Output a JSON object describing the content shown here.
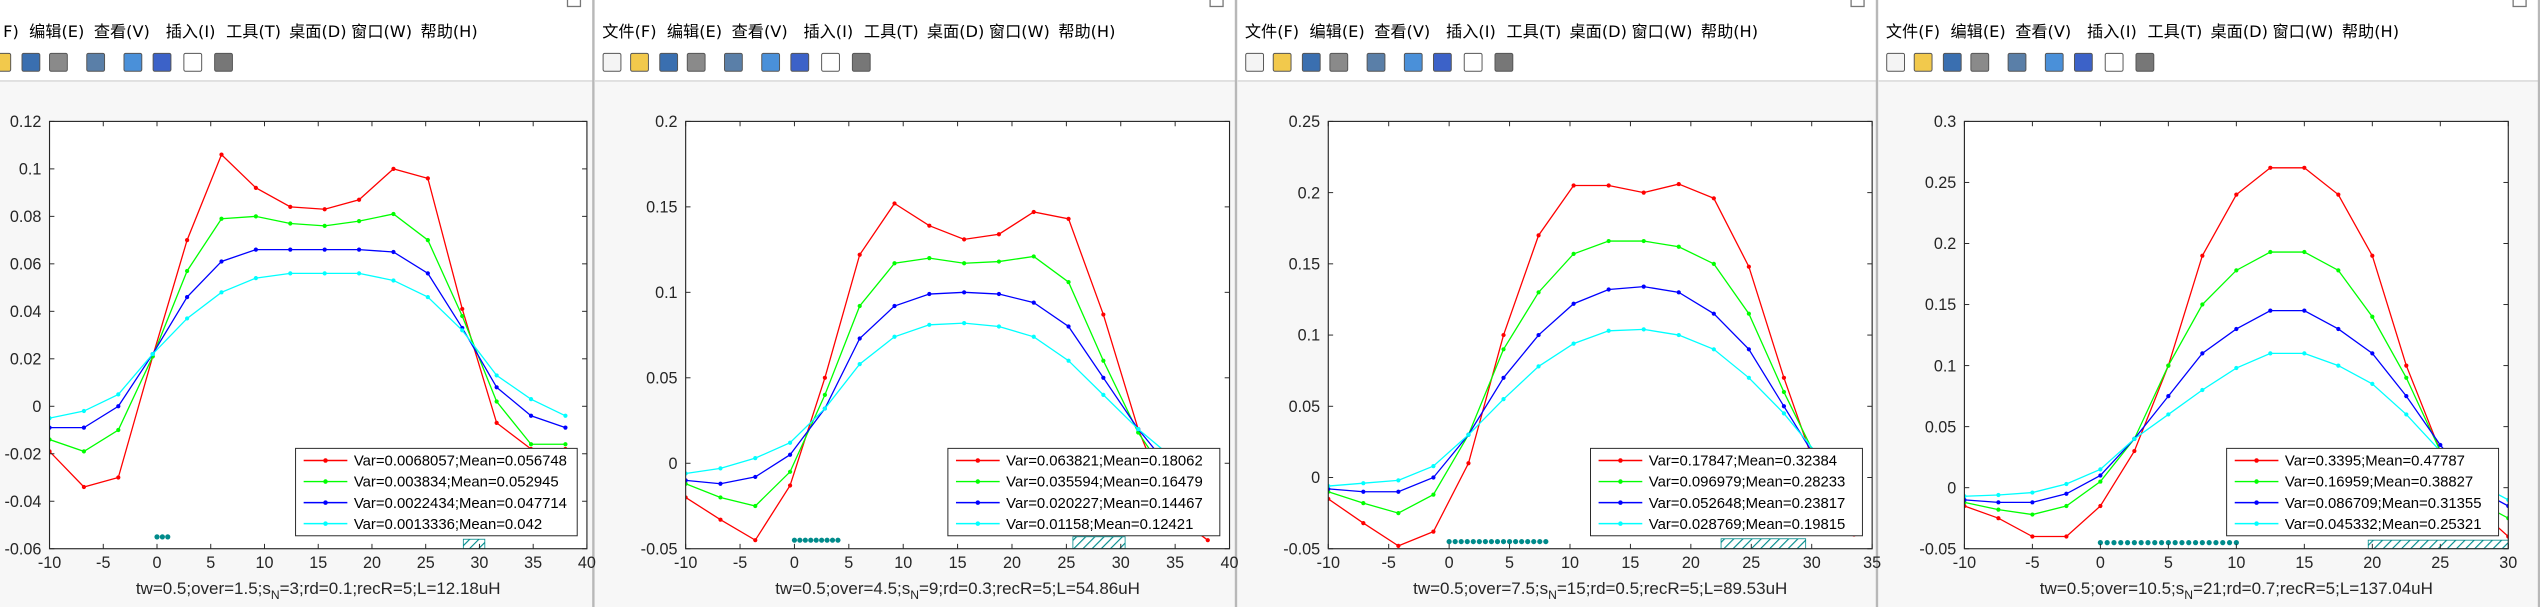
{
  "windows": [
    {
      "menu": [
        "F)",
        "编辑(E)",
        "查看(V)",
        "插入(I)",
        "工具(T)",
        "桌面(D)",
        "窗口(W)",
        "帮助(H)"
      ]
    },
    {
      "menu": [
        "文件(F)",
        "编辑(E)",
        "查看(V)",
        "插入(I)",
        "工具(T)",
        "桌面(D)",
        "窗口(W)",
        "帮助(H)"
      ]
    },
    {
      "menu": [
        "文件(F)",
        "编辑(E)",
        "查看(V)",
        "插入(I)",
        "工具(T)",
        "桌面(D)",
        "窗口(W)",
        "帮助(H)"
      ]
    },
    {
      "menu": [
        "文件(F)",
        "编辑(E)",
        "查看(V)",
        "插入(I)",
        "工具(T)",
        "桌面(D)",
        "窗口(W)",
        "帮助(H)"
      ]
    }
  ],
  "chart_data": [
    {
      "type": "line",
      "xlabel": {
        "text": "tw=0.5;over=1.5;s",
        "sub": "N",
        "tail": "=3;rd=0.1;recR=5;L=12.18uH"
      },
      "xlim": [
        -10,
        40
      ],
      "xticks": [
        -10,
        -5,
        0,
        5,
        10,
        15,
        20,
        25,
        30,
        35,
        40
      ],
      "ylim": [
        -0.06,
        0.12
      ],
      "yticks": [
        -0.06,
        -0.04,
        -0.02,
        0,
        0.02,
        0.04,
        0.06,
        0.08,
        0.1,
        0.12
      ],
      "x": [
        -10,
        -6.8,
        -3.6,
        -0.4,
        2.8,
        6,
        9.2,
        12.4,
        15.6,
        18.8,
        22,
        25.2,
        28.4,
        31.6,
        34.8,
        38
      ],
      "series": [
        {
          "name": "Var=0.0068057;Mean=0.056748",
          "color": "#ff0000",
          "values": [
            -0.019,
            -0.034,
            -0.03,
            0.021,
            0.07,
            0.106,
            0.092,
            0.084,
            0.083,
            0.087,
            0.1,
            0.096,
            0.041,
            -0.007,
            -0.018,
            -0.018
          ]
        },
        {
          "name": "Var=0.003834;Mean=0.052945",
          "color": "#00ff00",
          "values": [
            -0.014,
            -0.019,
            -0.01,
            0.021,
            0.057,
            0.079,
            0.08,
            0.077,
            0.076,
            0.078,
            0.081,
            0.07,
            0.038,
            0.002,
            -0.016,
            -0.016
          ]
        },
        {
          "name": "Var=0.0022434;Mean=0.047714",
          "color": "#0000ff",
          "values": [
            -0.009,
            -0.009,
            0.0,
            0.022,
            0.046,
            0.061,
            0.066,
            0.066,
            0.066,
            0.066,
            0.065,
            0.056,
            0.033,
            0.008,
            -0.004,
            -0.009
          ]
        },
        {
          "name": "Var=0.0013336;Mean=0.042",
          "color": "#00ffff",
          "values": [
            -0.005,
            -0.002,
            0.005,
            0.022,
            0.037,
            0.048,
            0.054,
            0.056,
            0.056,
            0.056,
            0.053,
            0.046,
            0.032,
            0.013,
            0.003,
            -0.004
          ]
        }
      ],
      "markers": {
        "x": [
          0,
          0.5,
          1
        ],
        "y": -0.055,
        "color": "#008b8b"
      },
      "hatch": {
        "x": [
          28.5,
          30.5
        ],
        "y": [
          -0.06,
          -0.056
        ],
        "color": "#008b8b"
      }
    },
    {
      "type": "line",
      "xlabel": {
        "text": "tw=0.5;over=4.5;s",
        "sub": "N",
        "tail": "=9;rd=0.3;recR=5;L=54.86uH"
      },
      "xlim": [
        -10,
        40
      ],
      "xticks": [
        -10,
        -5,
        0,
        5,
        10,
        15,
        20,
        25,
        30,
        35,
        40
      ],
      "ylim": [
        -0.05,
        0.2
      ],
      "yticks": [
        -0.05,
        0,
        0.05,
        0.1,
        0.15,
        0.2
      ],
      "x": [
        -10,
        -6.8,
        -3.6,
        -0.4,
        2.8,
        6,
        9.2,
        12.4,
        15.6,
        18.8,
        22,
        25.2,
        28.4,
        31.6,
        34.8,
        38
      ],
      "series": [
        {
          "name": "Var=0.063821;Mean=0.18062",
          "color": "#ff0000",
          "values": [
            -0.02,
            -0.033,
            -0.045,
            -0.013,
            0.05,
            0.122,
            0.152,
            0.139,
            0.131,
            0.134,
            0.147,
            0.143,
            0.087,
            0.02,
            -0.03,
            -0.045
          ]
        },
        {
          "name": "Var=0.035594;Mean=0.16479",
          "color": "#00ff00",
          "values": [
            -0.012,
            -0.02,
            -0.025,
            -0.005,
            0.04,
            0.092,
            0.117,
            0.12,
            0.117,
            0.118,
            0.121,
            0.106,
            0.06,
            0.018,
            -0.012,
            -0.025
          ]
        },
        {
          "name": "Var=0.020227;Mean=0.14467",
          "color": "#0000ff",
          "values": [
            -0.01,
            -0.012,
            -0.008,
            0.005,
            0.032,
            0.073,
            0.092,
            0.099,
            0.1,
            0.099,
            0.094,
            0.08,
            0.05,
            0.02,
            -0.005,
            -0.015
          ]
        },
        {
          "name": "Var=0.01158;Mean=0.12421",
          "color": "#00ffff",
          "values": [
            -0.006,
            -0.003,
            0.003,
            0.012,
            0.032,
            0.058,
            0.074,
            0.081,
            0.082,
            0.08,
            0.074,
            0.06,
            0.04,
            0.02,
            0.003,
            -0.008
          ]
        }
      ],
      "markers": {
        "x": [
          0,
          0.5,
          1,
          1.5,
          2,
          2.5,
          3,
          3.5,
          4
        ],
        "y": -0.045,
        "color": "#008b8b"
      },
      "hatch": {
        "x": [
          25.6,
          30.4
        ],
        "y": [
          -0.05,
          -0.043
        ],
        "color": "#008b8b"
      }
    },
    {
      "type": "line",
      "xlabel": {
        "text": "tw=0.5;over=7.5;s",
        "sub": "N",
        "tail": "=15;rd=0.5;recR=5;L=89.53uH"
      },
      "xlim": [
        -10,
        35
      ],
      "xticks": [
        -10,
        -5,
        0,
        5,
        10,
        15,
        20,
        25,
        30,
        35
      ],
      "ylim": [
        -0.05,
        0.25
      ],
      "yticks": [
        -0.05,
        0,
        0.05,
        0.1,
        0.15,
        0.2,
        0.25
      ],
      "x": [
        -10,
        -7.1,
        -4.2,
        -1.3,
        1.6,
        4.5,
        7.4,
        10.3,
        13.2,
        16.1,
        19,
        21.9,
        24.8,
        27.7,
        30.6,
        33.5
      ],
      "series": [
        {
          "name": "Var=0.17847;Mean=0.32384",
          "color": "#ff0000",
          "values": [
            -0.015,
            -0.032,
            -0.048,
            -0.038,
            0.01,
            0.1,
            0.17,
            0.205,
            0.205,
            0.2,
            0.206,
            0.196,
            0.148,
            0.07,
            0.0,
            -0.04
          ]
        },
        {
          "name": "Var=0.096979;Mean=0.28233",
          "color": "#00ff00",
          "values": [
            -0.01,
            -0.018,
            -0.025,
            -0.012,
            0.03,
            0.09,
            0.13,
            0.157,
            0.166,
            0.166,
            0.162,
            0.15,
            0.115,
            0.06,
            0.01,
            -0.025
          ]
        },
        {
          "name": "Var=0.052648;Mean=0.23817",
          "color": "#0000ff",
          "values": [
            -0.008,
            -0.01,
            -0.01,
            0.0,
            0.03,
            0.07,
            0.1,
            0.122,
            0.132,
            0.134,
            0.13,
            0.115,
            0.09,
            0.05,
            0.01,
            -0.015
          ]
        },
        {
          "name": "Var=0.028769;Mean=0.19815",
          "color": "#00ffff",
          "values": [
            -0.006,
            -0.004,
            -0.002,
            0.008,
            0.03,
            0.055,
            0.078,
            0.094,
            0.103,
            0.104,
            0.1,
            0.09,
            0.07,
            0.045,
            0.015,
            -0.005
          ]
        }
      ],
      "markers": {
        "x": [
          0,
          0.5,
          1,
          1.5,
          2,
          2.5,
          3,
          3.5,
          4,
          4.5,
          5,
          5.5,
          6,
          6.5,
          7,
          7.5,
          8
        ],
        "y": -0.045,
        "color": "#008b8b"
      },
      "hatch": {
        "x": [
          22.5,
          29.5
        ],
        "y": [
          -0.05,
          -0.043
        ],
        "color": "#008b8b"
      }
    },
    {
      "type": "line",
      "xlabel": {
        "text": "tw=0.5;over=10.5;s",
        "sub": "N",
        "tail": "=21;rd=0.7;recR=5;L=137.04uH"
      },
      "xlim": [
        -10,
        30
      ],
      "xticks": [
        -10,
        -5,
        0,
        5,
        10,
        15,
        20,
        25,
        30
      ],
      "ylim": [
        -0.05,
        0.3
      ],
      "yticks": [
        -0.05,
        0,
        0.05,
        0.1,
        0.15,
        0.2,
        0.25,
        0.3
      ],
      "x": [
        -10,
        -7.5,
        -5,
        -2.5,
        0,
        2.5,
        5,
        7.5,
        10,
        12.5,
        15,
        17.5,
        20,
        22.5,
        25,
        27.5,
        30
      ],
      "series": [
        {
          "name": "Var=0.3395;Mean=0.47787",
          "color": "#ff0000",
          "values": [
            -0.015,
            -0.025,
            -0.04,
            -0.04,
            -0.015,
            0.03,
            0.1,
            0.19,
            0.24,
            0.262,
            0.262,
            0.24,
            0.19,
            0.1,
            0.03,
            -0.015,
            -0.04
          ]
        },
        {
          "name": "Var=0.16959;Mean=0.38827",
          "color": "#00ff00",
          "values": [
            -0.012,
            -0.018,
            -0.022,
            -0.015,
            0.005,
            0.04,
            0.1,
            0.15,
            0.178,
            0.193,
            0.193,
            0.178,
            0.14,
            0.09,
            0.03,
            -0.01,
            -0.025
          ]
        },
        {
          "name": "Var=0.086709;Mean=0.31355",
          "color": "#0000ff",
          "values": [
            -0.01,
            -0.012,
            -0.012,
            -0.005,
            0.01,
            0.04,
            0.075,
            0.11,
            0.13,
            0.145,
            0.145,
            0.13,
            0.11,
            0.075,
            0.035,
            0.0,
            -0.015
          ]
        },
        {
          "name": "Var=0.045332;Mean=0.25321",
          "color": "#00ffff",
          "values": [
            -0.007,
            -0.006,
            -0.004,
            0.003,
            0.015,
            0.04,
            0.06,
            0.08,
            0.098,
            0.11,
            0.11,
            0.1,
            0.085,
            0.06,
            0.03,
            0.005,
            -0.01
          ]
        }
      ],
      "markers": {
        "x": [
          0,
          0.5,
          1,
          1.5,
          2,
          2.5,
          3,
          3.5,
          4,
          4.5,
          5,
          5.5,
          6,
          6.5,
          7,
          7.5,
          8,
          8.5,
          9,
          9.5,
          10
        ],
        "y": -0.045,
        "color": "#008b8b"
      },
      "hatch": {
        "x": [
          19.7,
          30
        ],
        "y": [
          -0.05,
          -0.043
        ],
        "color": "#008b8b"
      }
    }
  ]
}
